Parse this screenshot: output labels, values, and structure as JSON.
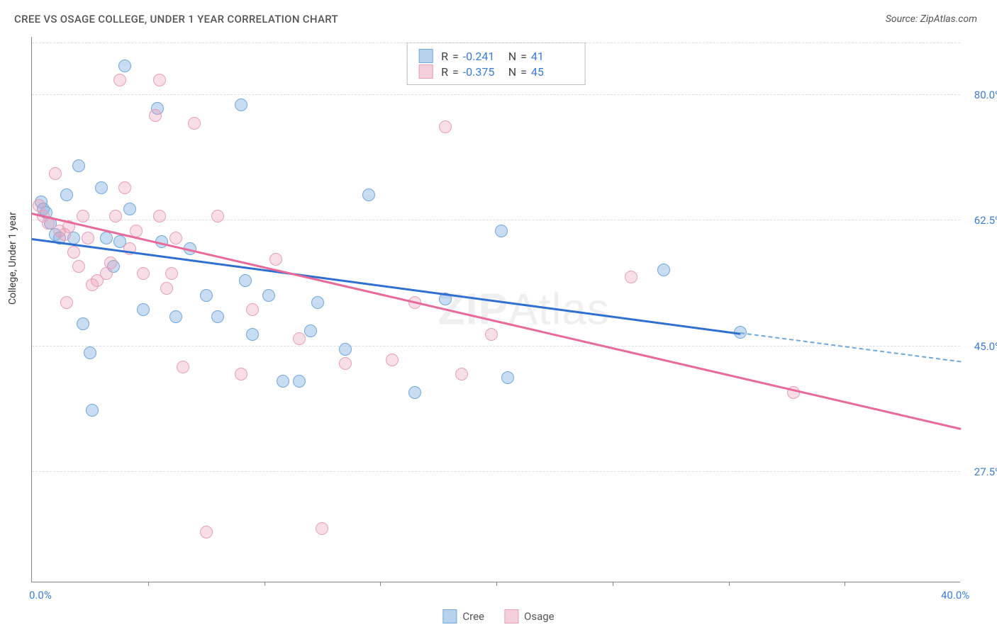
{
  "title": "CREE VS OSAGE COLLEGE, UNDER 1 YEAR CORRELATION CHART",
  "source": "Source: ZipAtlas.com",
  "ylabel": "College, Under 1 year",
  "watermark": {
    "bold": "ZIP",
    "rest": "Atlas"
  },
  "chart": {
    "type": "scatter",
    "xlim": [
      0,
      40
    ],
    "ylim": [
      12,
      88
    ],
    "background_color": "#ffffff",
    "grid_color": "#dddddd",
    "yticks": [
      27.5,
      45.0,
      62.5,
      80.0
    ],
    "ytick_labels": [
      "27.5%",
      "45.0%",
      "62.5%",
      "80.0%"
    ],
    "xtick_marks": [
      5,
      10,
      15,
      20,
      25,
      30,
      35
    ],
    "xtick_labels": [
      {
        "x": 0,
        "label": "0.0%"
      },
      {
        "x": 40,
        "label": "40.0%"
      }
    ],
    "series": [
      {
        "name": "Cree",
        "color_fill": "rgba(136,180,226,0.45)",
        "color_stroke": "#6fa8dc",
        "trend_color": "#2f6fd0",
        "R": "-0.241",
        "N": "41",
        "trend": {
          "x0": 0,
          "y0": 60.0,
          "x_solid_end": 30.5,
          "y_solid_end": 46.8,
          "x1": 40,
          "y1": 42.8
        },
        "points": [
          [
            0.4,
            65
          ],
          [
            0.5,
            64
          ],
          [
            0.6,
            63.5
          ],
          [
            0.8,
            62
          ],
          [
            1.0,
            60.5
          ],
          [
            1.2,
            60
          ],
          [
            1.5,
            66
          ],
          [
            1.8,
            60
          ],
          [
            2.0,
            70
          ],
          [
            2.2,
            48
          ],
          [
            2.5,
            44
          ],
          [
            2.6,
            36
          ],
          [
            3.0,
            67
          ],
          [
            3.2,
            60
          ],
          [
            3.5,
            56
          ],
          [
            3.8,
            59.5
          ],
          [
            4.0,
            84
          ],
          [
            4.2,
            64
          ],
          [
            4.8,
            50
          ],
          [
            5.4,
            78
          ],
          [
            5.6,
            59.5
          ],
          [
            6.2,
            49
          ],
          [
            6.8,
            58.5
          ],
          [
            7.5,
            52
          ],
          [
            8.0,
            49
          ],
          [
            9.0,
            78.5
          ],
          [
            9.2,
            54
          ],
          [
            9.5,
            46.5
          ],
          [
            10.2,
            52
          ],
          [
            10.8,
            40
          ],
          [
            11.5,
            40
          ],
          [
            12.0,
            47
          ],
          [
            12.3,
            51
          ],
          [
            13.5,
            44.5
          ],
          [
            14.5,
            66
          ],
          [
            16.5,
            38.5
          ],
          [
            17.8,
            51.5
          ],
          [
            20.2,
            61
          ],
          [
            20.5,
            40.5
          ],
          [
            27.2,
            55.5
          ],
          [
            30.5,
            46.8
          ]
        ]
      },
      {
        "name": "Osage",
        "color_fill": "rgba(236,160,186,0.35)",
        "color_stroke": "#e79fb9",
        "trend_color": "#e76a9b",
        "R": "-0.375",
        "N": "45",
        "trend": {
          "x0": 0,
          "y0": 63.5,
          "x_solid_end": 40,
          "y_solid_end": 33.5,
          "x1": 40,
          "y1": 33.5
        },
        "points": [
          [
            0.3,
            64.5
          ],
          [
            0.5,
            63
          ],
          [
            0.7,
            62
          ],
          [
            1.0,
            69
          ],
          [
            1.2,
            61
          ],
          [
            1.4,
            60.5
          ],
          [
            1.6,
            61.5
          ],
          [
            1.8,
            58
          ],
          [
            2.0,
            56
          ],
          [
            2.2,
            63
          ],
          [
            2.4,
            60
          ],
          [
            2.6,
            53.5
          ],
          [
            2.8,
            54
          ],
          [
            3.2,
            55
          ],
          [
            3.4,
            56.5
          ],
          [
            3.6,
            63
          ],
          [
            3.8,
            82
          ],
          [
            4.0,
            67
          ],
          [
            4.2,
            58.5
          ],
          [
            4.5,
            61
          ],
          [
            4.8,
            55
          ],
          [
            5.3,
            77
          ],
          [
            5.5,
            63
          ],
          [
            5.5,
            82
          ],
          [
            5.8,
            53
          ],
          [
            6.0,
            55
          ],
          [
            6.2,
            60
          ],
          [
            6.5,
            42
          ],
          [
            7.0,
            76
          ],
          [
            7.5,
            19
          ],
          [
            8.0,
            63
          ],
          [
            9.0,
            41
          ],
          [
            9.5,
            50
          ],
          [
            10.5,
            57
          ],
          [
            11.5,
            46
          ],
          [
            12.5,
            19.5
          ],
          [
            13.5,
            42.5
          ],
          [
            15.5,
            43
          ],
          [
            16.5,
            51
          ],
          [
            17.8,
            75.5
          ],
          [
            18.5,
            41
          ],
          [
            19.8,
            46.5
          ],
          [
            25.8,
            54.5
          ],
          [
            32.8,
            38.5
          ],
          [
            1.5,
            51
          ]
        ]
      }
    ]
  },
  "legend": {
    "items": [
      {
        "label": "Cree",
        "swatch": "blue"
      },
      {
        "label": "Osage",
        "swatch": "pink"
      }
    ]
  }
}
